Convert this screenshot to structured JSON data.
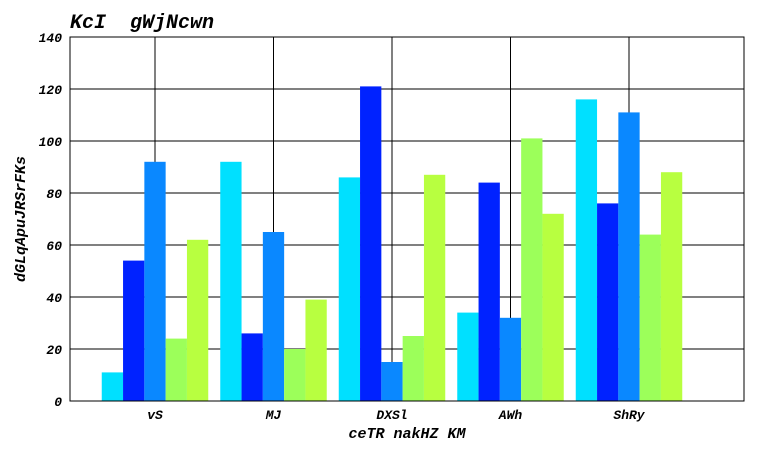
{
  "chart_data": {
    "type": "bar",
    "title": "KcI  gWjNcwn",
    "xlabel": "ceTR nakHZ KM",
    "ylabel": "dGLqApuJRSrFKs",
    "categories": [
      "vS",
      "MJ",
      "DXSl",
      "AWh",
      "ShRy"
    ],
    "ylim": [
      0,
      140
    ],
    "yticks": [
      0,
      20,
      40,
      60,
      80,
      100,
      120,
      140
    ],
    "grid": true,
    "series": [
      {
        "color": "#00e0ff",
        "values": [
          11,
          92,
          86,
          34,
          116
        ]
      },
      {
        "color": "#0022ff",
        "values": [
          54,
          26,
          121,
          84,
          76
        ]
      },
      {
        "color": "#0a88ff",
        "values": [
          92,
          65,
          15,
          32,
          111
        ]
      },
      {
        "color": "#9cff5a",
        "values": [
          24,
          20,
          25,
          101,
          64
        ]
      },
      {
        "color": "#b8ff40",
        "values": [
          62,
          39,
          87,
          72,
          88
        ]
      }
    ]
  }
}
